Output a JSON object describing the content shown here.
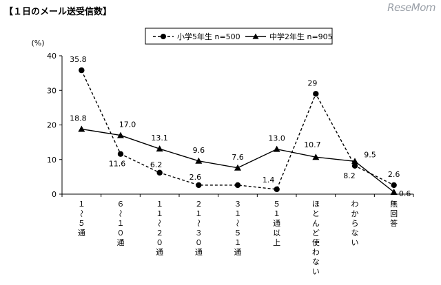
{
  "header": {
    "title": "【１日のメール送受信数】",
    "watermark": "ReseMom"
  },
  "chart_data": {
    "type": "line",
    "y_unit_label": "(%)",
    "ylim": [
      0,
      40
    ],
    "yticks": [
      "0",
      "10",
      "20",
      "30",
      "40"
    ],
    "categories": [
      "１～５通",
      "６～１０通",
      "１１～２０通",
      "２１～３０通",
      "３１～５１通",
      "５１通以上",
      "ほとんど使わない",
      "わからない",
      "無回答"
    ],
    "series": [
      {
        "name": "小学5年生 n=500",
        "values": [
          35.8,
          11.6,
          6.2,
          2.6,
          2.6,
          1.4,
          29,
          8.2,
          2.6
        ],
        "labels": [
          "35.8",
          "11.6",
          "6.2",
          "2.6",
          "",
          "1.4",
          "29",
          "8.2",
          "2.6"
        ],
        "marker": "circle",
        "dash": "dashed",
        "color": "#000000"
      },
      {
        "name": "中学2年生 n=905",
        "values": [
          18.8,
          17.0,
          13.1,
          9.6,
          7.6,
          13.0,
          10.7,
          9.5,
          0.6
        ],
        "labels": [
          "18.8",
          "17.0",
          "13.1",
          "9.6",
          "7.6",
          "13.0",
          "10.7",
          "9.5",
          "0.6"
        ],
        "marker": "triangle",
        "dash": "solid",
        "color": "#000000"
      }
    ],
    "legend_position": "top-center",
    "grid": false
  }
}
